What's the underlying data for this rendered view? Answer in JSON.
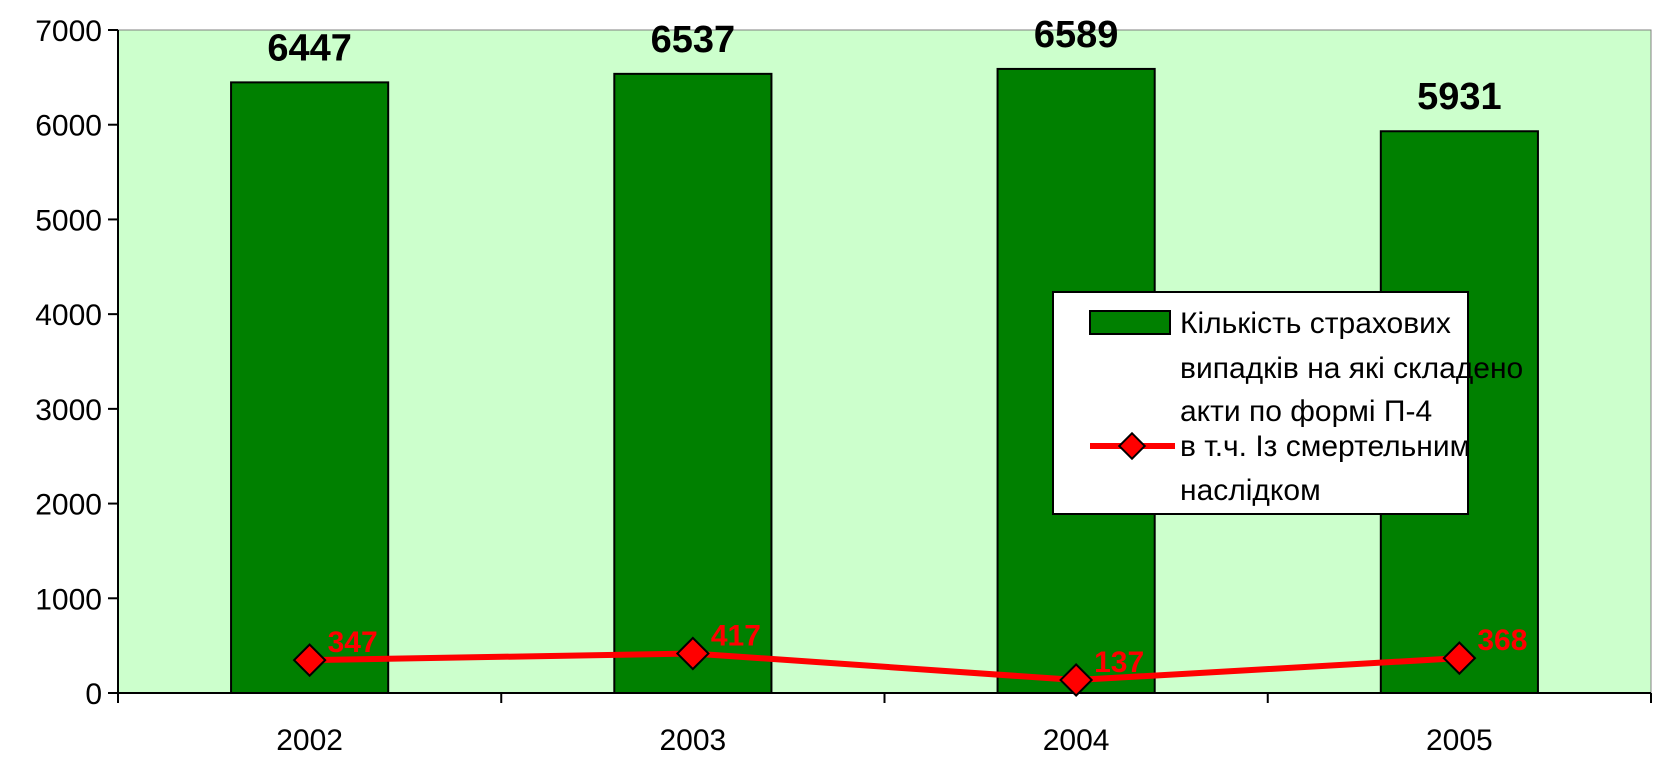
{
  "chart_data": {
    "type": "bar",
    "categories": [
      "2002",
      "2003",
      "2004",
      "2005"
    ],
    "ylim": [
      0,
      7000
    ],
    "yticks": [
      0,
      1000,
      2000,
      3000,
      4000,
      5000,
      6000,
      7000
    ],
    "grid": false,
    "legend_position": "right",
    "series": [
      {
        "name": "Кількість страхових випадків на які складено акти по формі П-4",
        "type": "bar",
        "values": [
          6447,
          6537,
          6589,
          5931
        ],
        "color": "#008000",
        "label_color": "#000000"
      },
      {
        "name": "в т.ч. Із смертельним наслідком",
        "type": "line",
        "values": [
          347,
          417,
          137,
          368
        ],
        "color": "#ff0000",
        "marker": "diamond",
        "label_color": "#ff0000"
      }
    ],
    "legend": {
      "bar_lines": [
        "Кількість страхових",
        "випадків на які складено",
        "акти по формі П-4"
      ],
      "line_lines": [
        "в т.ч. Із смертельним",
        "наслідком"
      ]
    },
    "plot_background": "#ccffcc"
  }
}
